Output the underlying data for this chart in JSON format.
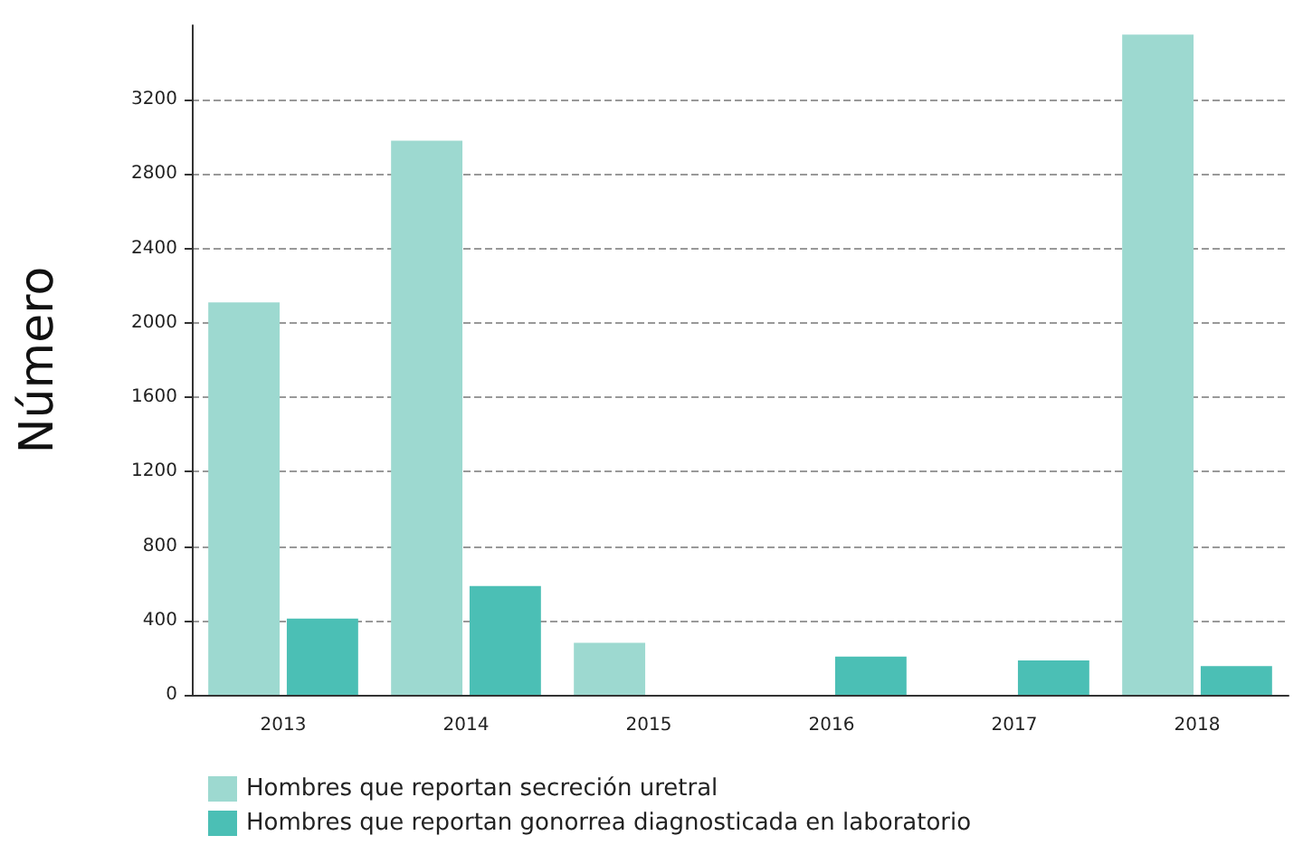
{
  "chart_data": {
    "type": "bar",
    "ylabel": "Número",
    "categories": [
      "2013",
      "2014",
      "2015",
      "2016",
      "2017",
      "2018"
    ],
    "series": [
      {
        "name": "Hombres que reportan secreción uretral",
        "color": "#9dd9d0",
        "values": [
          2110,
          2980,
          280,
          null,
          null,
          3550
        ]
      },
      {
        "name": "Hombres que reportan gonorrea diagnosticada en laboratorio",
        "color": "#4bbfb5",
        "values": [
          410,
          585,
          null,
          205,
          185,
          155
        ]
      }
    ],
    "ylim": [
      0,
      3600
    ],
    "yticks": [
      0,
      400,
      800,
      1200,
      1600,
      2000,
      2400,
      2800,
      3200
    ],
    "grid": "y",
    "legend": "bottom left"
  }
}
